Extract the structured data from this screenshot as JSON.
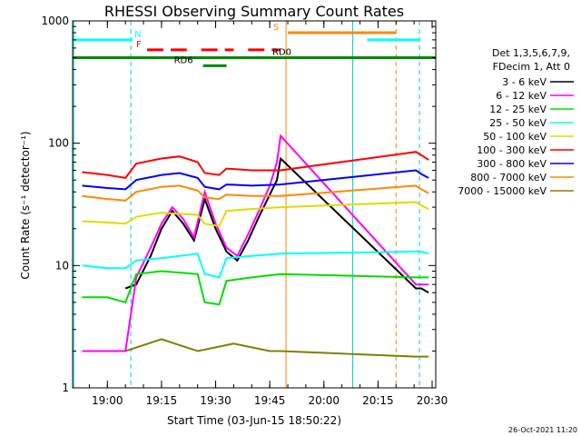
{
  "chart_data": {
    "type": "line",
    "title": "RHESSI Observing Summary Count Rates",
    "xlabel": "Start Time (03-Jun-15 18:50:22)",
    "ylabel": "Count Rate (s⁻¹ detector⁻¹)",
    "y_scale": "log",
    "ylim": [
      1,
      1000
    ],
    "xlim": [
      "18:50:22",
      "20:31:00"
    ],
    "x_ticks": [
      "19:00",
      "19:15",
      "19:30",
      "19:45",
      "20:00",
      "20:15",
      "20:30"
    ],
    "y_ticks": [
      "1",
      "10",
      "100",
      "1000"
    ],
    "timestamp": "26-Oct-2021 11:20",
    "legend_header": [
      "Det 1,3,5,6,7,9,",
      "FDecim 1, Att 0"
    ],
    "series": [
      {
        "name": "3 - 6 keV",
        "color": "#000000",
        "points": [
          [
            "18:53:00",
            null
          ],
          [
            "19:05:00",
            6.5
          ],
          [
            "19:08:00",
            7
          ],
          [
            "19:12:00",
            12
          ],
          [
            "19:15:00",
            20
          ],
          [
            "19:18:00",
            28
          ],
          [
            "19:21:00",
            22
          ],
          [
            "19:24:00",
            16
          ],
          [
            "19:27:00",
            35
          ],
          [
            "19:30:00",
            20
          ],
          [
            "19:33:00",
            13
          ],
          [
            "19:36:00",
            11
          ],
          [
            "19:39:00",
            16
          ],
          [
            "19:42:00",
            25
          ],
          [
            "19:45:00",
            38
          ],
          [
            "19:47:00",
            50
          ],
          [
            "19:48:00",
            75
          ],
          [
            "20:25:30",
            6.5
          ],
          [
            "20:27:00",
            6.5
          ],
          [
            "20:29:00",
            6
          ]
        ]
      },
      {
        "name": "6 - 12 keV",
        "color": "#ff00ff",
        "points": [
          [
            "18:53:00",
            2
          ],
          [
            "19:00:00",
            2
          ],
          [
            "19:05:00",
            2
          ],
          [
            "19:08:00",
            8
          ],
          [
            "19:12:00",
            14
          ],
          [
            "19:15:00",
            22
          ],
          [
            "19:18:00",
            30
          ],
          [
            "19:21:00",
            24
          ],
          [
            "19:24:00",
            17
          ],
          [
            "19:27:00",
            40
          ],
          [
            "19:30:00",
            22
          ],
          [
            "19:33:00",
            14
          ],
          [
            "19:36:00",
            12
          ],
          [
            "19:39:00",
            18
          ],
          [
            "19:42:00",
            28
          ],
          [
            "19:45:00",
            45
          ],
          [
            "19:47:00",
            70
          ],
          [
            "19:48:00",
            115
          ],
          [
            "20:25:30",
            7
          ],
          [
            "20:27:00",
            7
          ],
          [
            "20:29:00",
            7
          ]
        ]
      },
      {
        "name": "12 - 25 keV",
        "color": "#00dd00",
        "points": [
          [
            "18:53:00",
            5.5
          ],
          [
            "19:00:00",
            5.5
          ],
          [
            "19:05:00",
            5
          ],
          [
            "19:08:00",
            8.5
          ],
          [
            "19:15:00",
            9
          ],
          [
            "19:25:00",
            8.5
          ],
          [
            "19:27:00",
            5
          ],
          [
            "19:31:00",
            4.8
          ],
          [
            "19:33:00",
            7.5
          ],
          [
            "19:40:00",
            8
          ],
          [
            "19:48:00",
            8.5
          ],
          [
            "20:25:30",
            8
          ],
          [
            "20:27:00",
            8
          ],
          [
            "20:29:00",
            8
          ]
        ]
      },
      {
        "name": "25 - 50 keV",
        "color": "#00ffff",
        "points": [
          [
            "18:53:00",
            10
          ],
          [
            "19:00:00",
            9.5
          ],
          [
            "19:05:00",
            9.5
          ],
          [
            "19:08:00",
            11
          ],
          [
            "19:15:00",
            11.5
          ],
          [
            "19:25:00",
            12.5
          ],
          [
            "19:27:00",
            8.5
          ],
          [
            "19:31:00",
            8
          ],
          [
            "19:33:00",
            11.5
          ],
          [
            "19:40:00",
            12
          ],
          [
            "19:48:00",
            12.5
          ],
          [
            "20:25:30",
            13
          ],
          [
            "20:27:00",
            13
          ],
          [
            "20:29:00",
            12.5
          ]
        ]
      },
      {
        "name": "50 - 100 keV",
        "color": "#dddd00",
        "points": [
          [
            "18:53:00",
            23
          ],
          [
            "19:00:00",
            22.5
          ],
          [
            "19:05:00",
            22
          ],
          [
            "19:08:00",
            25
          ],
          [
            "19:15:00",
            27
          ],
          [
            "19:25:00",
            26
          ],
          [
            "19:27:00",
            22
          ],
          [
            "19:31:00",
            21
          ],
          [
            "19:33:00",
            28
          ],
          [
            "19:40:00",
            29
          ],
          [
            "19:48:00",
            30
          ],
          [
            "20:25:30",
            33
          ],
          [
            "20:27:00",
            31
          ],
          [
            "20:29:00",
            29
          ]
        ]
      },
      {
        "name": "100 - 300 keV",
        "color": "#ff0000",
        "points": [
          [
            "18:53:00",
            58
          ],
          [
            "19:00:00",
            55
          ],
          [
            "19:05:00",
            52
          ],
          [
            "19:08:00",
            68
          ],
          [
            "19:15:00",
            75
          ],
          [
            "19:20:00",
            78
          ],
          [
            "19:25:00",
            70
          ],
          [
            "19:27:00",
            57
          ],
          [
            "19:31:00",
            55
          ],
          [
            "19:33:00",
            62
          ],
          [
            "19:40:00",
            60
          ],
          [
            "19:48:00",
            60
          ],
          [
            "20:25:30",
            85
          ],
          [
            "20:27:00",
            80
          ],
          [
            "20:29:00",
            73
          ]
        ]
      },
      {
        "name": "300 - 800 keV",
        "color": "#0000ff",
        "points": [
          [
            "18:53:00",
            45
          ],
          [
            "19:00:00",
            43
          ],
          [
            "19:05:00",
            42
          ],
          [
            "19:08:00",
            50
          ],
          [
            "19:15:00",
            55
          ],
          [
            "19:20:00",
            57
          ],
          [
            "19:25:00",
            52
          ],
          [
            "19:27:00",
            44
          ],
          [
            "19:31:00",
            42
          ],
          [
            "19:33:00",
            46
          ],
          [
            "19:40:00",
            45
          ],
          [
            "19:48:00",
            46
          ],
          [
            "20:25:30",
            60
          ],
          [
            "20:27:00",
            56
          ],
          [
            "20:29:00",
            52
          ]
        ]
      },
      {
        "name": "800 - 7000 keV",
        "color": "#ff8800",
        "points": [
          [
            "18:53:00",
            37
          ],
          [
            "19:00:00",
            35
          ],
          [
            "19:05:00",
            34
          ],
          [
            "19:08:00",
            40
          ],
          [
            "19:15:00",
            44
          ],
          [
            "19:20:00",
            45
          ],
          [
            "19:25:00",
            41
          ],
          [
            "19:27:00",
            36
          ],
          [
            "19:31:00",
            35
          ],
          [
            "19:33:00",
            38
          ],
          [
            "19:40:00",
            37
          ],
          [
            "19:48:00",
            37
          ],
          [
            "20:25:30",
            45
          ],
          [
            "20:27:00",
            42
          ],
          [
            "20:29:00",
            39
          ]
        ]
      },
      {
        "name": "7000 - 15000 keV",
        "color": "#808000",
        "points": [
          [
            "18:53:00",
            null
          ],
          [
            "19:05:00",
            2
          ],
          [
            "19:15:00",
            2.5
          ],
          [
            "19:25:00",
            2
          ],
          [
            "19:35:00",
            2.3
          ],
          [
            "19:45:00",
            2
          ],
          [
            "19:48:00",
            2
          ],
          [
            "20:25:30",
            1.8
          ],
          [
            "20:29:00",
            1.8
          ]
        ]
      }
    ],
    "annotations": [
      {
        "label": "N",
        "color": "#00ffff",
        "y": 700,
        "segments": [
          [
            "18:50:22",
            "19:07:00"
          ],
          [
            "20:12:00",
            "20:26:30"
          ]
        ]
      },
      {
        "label": "S",
        "color": "#ff8800",
        "y": 800,
        "segments": [
          [
            "19:50:00",
            "20:20:00"
          ]
        ]
      },
      {
        "label": "F",
        "color": "#ff0000",
        "y": 580,
        "segments": [
          [
            "19:11:00",
            "19:22:00"
          ],
          [
            "19:26:00",
            "19:35:00"
          ],
          [
            "19:39:00",
            "19:48:00"
          ]
        ]
      },
      {
        "label": "RD0",
        "color": "#008800",
        "y": 500,
        "segments": [
          [
            "18:50:22",
            "20:31:00"
          ]
        ]
      },
      {
        "label": "RD6",
        "color": "#008800",
        "y": 430,
        "segments": [
          [
            "19:26:30",
            "19:33:00"
          ]
        ]
      }
    ],
    "vlines": [
      {
        "time": "18:50:40",
        "color": "#00cccc",
        "style": "solid"
      },
      {
        "time": "19:06:30",
        "color": "#00cccc",
        "style": "dashed"
      },
      {
        "time": "19:49:30",
        "color": "#ff8800",
        "style": "solid"
      },
      {
        "time": "20:08:00",
        "color": "#00cccc",
        "style": "solid"
      },
      {
        "time": "20:20:00",
        "color": "#ff8800",
        "style": "dashed"
      },
      {
        "time": "20:26:30",
        "color": "#00cccc",
        "style": "dashed"
      }
    ]
  }
}
